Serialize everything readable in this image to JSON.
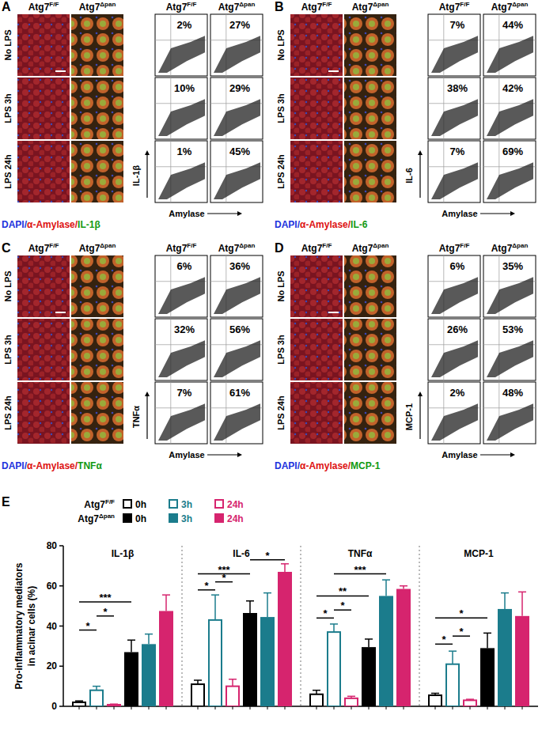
{
  "figure": {
    "genotypes": [
      {
        "base": "Atg7",
        "sup": "F/F"
      },
      {
        "base": "Atg7",
        "sup": "Δpan"
      }
    ],
    "conditions": [
      "No LPS",
      "LPS 3h",
      "LPS 24h"
    ],
    "x_label": "Amylase",
    "panels": [
      {
        "label": "A",
        "marker": "IL-1β",
        "stain": [
          {
            "text": "DAPI/",
            "color": "#2233dd"
          },
          {
            "text": "α-Amylase/",
            "color": "#dd1111"
          },
          {
            "text": "IL-1β",
            "color": "#119911"
          }
        ],
        "percentages": [
          [
            "2%",
            "10%",
            "1%"
          ],
          [
            "27%",
            "29%",
            "45%"
          ]
        ]
      },
      {
        "label": "B",
        "marker": "IL-6",
        "stain": [
          {
            "text": "DAPI/",
            "color": "#2233dd"
          },
          {
            "text": "α-Amylase/",
            "color": "#dd1111"
          },
          {
            "text": "IL-6",
            "color": "#119911"
          }
        ],
        "percentages": [
          [
            "7%",
            "38%",
            "7%"
          ],
          [
            "44%",
            "42%",
            "69%"
          ]
        ]
      },
      {
        "label": "C",
        "marker": "TNFα",
        "stain": [
          {
            "text": "DAPI/",
            "color": "#2233dd"
          },
          {
            "text": "α-Amylase/",
            "color": "#dd1111"
          },
          {
            "text": "TNFα",
            "color": "#119911"
          }
        ],
        "percentages": [
          [
            "6%",
            "32%",
            "7%"
          ],
          [
            "36%",
            "56%",
            "61%"
          ]
        ]
      },
      {
        "label": "D",
        "marker": "MCP-1",
        "stain": [
          {
            "text": "DAPI/",
            "color": "#2233dd"
          },
          {
            "text": "α-Amylase/",
            "color": "#dd1111"
          },
          {
            "text": "MCP-1",
            "color": "#119911"
          }
        ],
        "percentages": [
          [
            "6%",
            "26%",
            "2%"
          ],
          [
            "35%",
            "53%",
            "48%"
          ]
        ]
      }
    ],
    "chart_label": "E"
  },
  "chart_data": {
    "type": "bar",
    "categories": [
      "IL-1β",
      "IL-6",
      "TNFα",
      "MCP-1"
    ],
    "y_label": [
      "Pro-inflammatory mediators",
      "in acinar cells (%)"
    ],
    "ylim": [
      0,
      80
    ],
    "yticks": [
      0,
      20,
      40,
      60,
      80
    ],
    "grid": false,
    "series": [
      {
        "name": "0h",
        "genotype": {
          "base": "Atg7",
          "sup": "F/F"
        },
        "color": "#000000",
        "marker": "hollow",
        "values": [
          2,
          11,
          6,
          5.5
        ],
        "errors": [
          0.7,
          2,
          2,
          1
        ]
      },
      {
        "name": "3h",
        "genotype": {
          "base": "Atg7",
          "sup": "F/F"
        },
        "color": "#1b7c8c",
        "marker": "hollow",
        "values": [
          8,
          43,
          37,
          21
        ],
        "errors": [
          2,
          12.5,
          4,
          6.5
        ]
      },
      {
        "name": "24h",
        "genotype": {
          "base": "Atg7",
          "sup": "F/F"
        },
        "color": "#d6246e",
        "marker": "hollow",
        "values": [
          0.8,
          10,
          4,
          3
        ],
        "errors": [
          0.3,
          3.5,
          1,
          0.5
        ]
      },
      {
        "name": "0h",
        "genotype": {
          "base": "Atg7",
          "sup": "Δpan"
        },
        "color": "#000000",
        "marker": "filled",
        "values": [
          27,
          46.5,
          29.5,
          29
        ],
        "errors": [
          6,
          6,
          4,
          7.5
        ]
      },
      {
        "name": "3h",
        "genotype": {
          "base": "Atg7",
          "sup": "Δpan"
        },
        "color": "#1b7c8c",
        "marker": "filled",
        "values": [
          31,
          44.5,
          55,
          48.5
        ],
        "errors": [
          5,
          12,
          8,
          8
        ]
      },
      {
        "name": "24h",
        "genotype": {
          "base": "Atg7",
          "sup": "Δpan"
        },
        "color": "#d6246e",
        "marker": "filled",
        "values": [
          47.5,
          67,
          58.5,
          45
        ],
        "errors": [
          8,
          4,
          1.5,
          12
        ]
      }
    ],
    "annotations": [
      {
        "category": 0,
        "from": 0,
        "to": 1,
        "y": 38,
        "text": "*"
      },
      {
        "category": 0,
        "from": 1,
        "to": 2,
        "y": 45,
        "text": "*"
      },
      {
        "category": 0,
        "from": 0,
        "to": 3,
        "y": 52,
        "text": "***"
      },
      {
        "category": 1,
        "from": 0,
        "to": 1,
        "y": 58,
        "text": "*"
      },
      {
        "category": 1,
        "from": 1,
        "to": 2,
        "y": 62,
        "text": "*"
      },
      {
        "category": 1,
        "from": 0,
        "to": 3,
        "y": 66,
        "text": "***"
      },
      {
        "category": 1,
        "from": 3,
        "to": 5,
        "y": 73,
        "text": "*"
      },
      {
        "category": 2,
        "from": 0,
        "to": 1,
        "y": 44,
        "text": "*"
      },
      {
        "category": 2,
        "from": 1,
        "to": 2,
        "y": 48,
        "text": "*"
      },
      {
        "category": 2,
        "from": 0,
        "to": 3,
        "y": 55,
        "text": "**"
      },
      {
        "category": 2,
        "from": 1,
        "to": 4,
        "y": 66,
        "text": "***"
      },
      {
        "category": 3,
        "from": 0,
        "to": 1,
        "y": 31,
        "text": "*"
      },
      {
        "category": 3,
        "from": 1,
        "to": 2,
        "y": 35,
        "text": "*"
      },
      {
        "category": 3,
        "from": 0,
        "to": 3,
        "y": 44,
        "text": "*"
      }
    ]
  }
}
